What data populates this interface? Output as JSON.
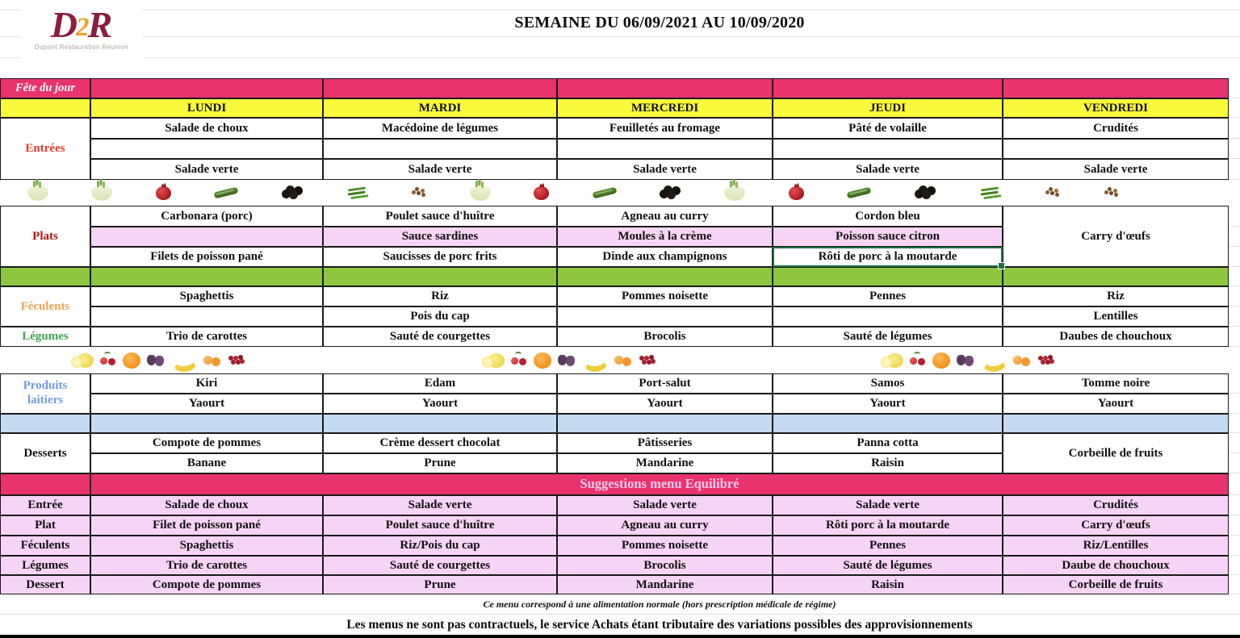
{
  "header": {
    "title": "SEMAINE DU 06/09/2021 AU 10/09/2020",
    "logo": {
      "d": "D",
      "two": "2",
      "r": "R",
      "subtitle": "Dupont Restauration Réunion"
    }
  },
  "days": [
    "LUNDI",
    "MARDI",
    "MERCREDI",
    "JEUDI",
    "VENDREDI"
  ],
  "labels": {
    "fete": "Fête du jour",
    "entrees": "Entrées",
    "plats": "Plats",
    "feculents": "Féculents",
    "legumes": "Légumes",
    "laitiers_1": "Produits",
    "laitiers_2": "laitiers",
    "desserts": "Desserts",
    "suggestions_title": "Suggestions menu Equilibré",
    "sugg_rows": [
      "Entrée",
      "Plat",
      "Féculents",
      "Légumes",
      "Dessert"
    ]
  },
  "menu": {
    "entrees_r1": [
      "Salade de choux",
      "Macédoine de légumes",
      "Feuilletés au fromage",
      "Pâté de volaille",
      "Crudités"
    ],
    "entrees_r2": [
      "",
      "",
      "",
      "",
      ""
    ],
    "entrees_r3": [
      "Salade verte",
      "Salade verte",
      "Salade verte",
      "Salade verte",
      "Salade verte"
    ],
    "plats_r1": [
      "Carbonara (porc)",
      "Poulet sauce d'huître",
      "Agneau au curry",
      "Cordon bleu"
    ],
    "plats_r2": [
      "",
      "Sauce sardines",
      "Moules à la crème",
      "Poisson sauce citron"
    ],
    "plats_r3": [
      "Filets de poisson pané",
      "Saucisses de porc frits",
      "Dinde aux champignons",
      "Rôti de porc à la moutarde"
    ],
    "plats_vendredi": "Carry d'œufs",
    "feculents_r1": [
      "Spaghettis",
      "Riz",
      "Pommes noisette",
      "Pennes",
      "Riz"
    ],
    "feculents_r2": [
      "",
      "Pois du cap",
      "",
      "",
      "Lentilles"
    ],
    "legumes": [
      "Trio de carottes",
      "Sauté de courgettes",
      "Brocolis",
      "Sauté de légumes",
      "Daubes de chouchoux"
    ],
    "laitiers_r1": [
      "Kiri",
      "Edam",
      "Port-salut",
      "Samos",
      "Tomme noire"
    ],
    "laitiers_r2": [
      "Yaourt",
      "Yaourt",
      "Yaourt",
      "Yaourt",
      "Yaourt"
    ],
    "desserts_r1": [
      "Compote de pommes",
      "Crème dessert chocolat",
      "Pâtisseries",
      "Panna cotta"
    ],
    "desserts_r2": [
      "Banane",
      "Prune",
      "Mandarine",
      "Raisin"
    ],
    "desserts_vendredi": "Corbeille de fruits"
  },
  "suggestions": {
    "entree": [
      "Salade de choux",
      "Salade verte",
      "Salade verte",
      "Salade verte",
      "Crudités"
    ],
    "plat": [
      "Filet de poisson pané",
      "Poulet sauce d'huître",
      "Agneau au curry",
      "Rôti porc à la moutarde",
      "Carry d'œufs"
    ],
    "feculents": [
      "Spaghettis",
      "Riz/Pois du cap",
      "Pommes noisette",
      "Pennes",
      "Riz/Lentilles"
    ],
    "legumes": [
      "Trio de carottes",
      "Sauté de courgettes",
      "Brocolis",
      "Sauté de légumes",
      "Daube de chouchoux"
    ],
    "dessert": [
      "Compote de pommes",
      "Prune",
      "Mandarine",
      "Raisin",
      "Corbeille de fruits"
    ]
  },
  "footer": {
    "note1": "Ce menu correspond à une alimentation normale (hors prescription médicale de régime)",
    "note2": "Les menus ne sont pas contractuels, le service Achats étant tributaire des variations possibles des approvisionnements"
  },
  "colors": {
    "crimson": "#e8336e",
    "yellow": "#fafa3c",
    "light_pink": "#f5d4f6",
    "green_band": "#8ec63f",
    "blue_band": "#c5d9f1",
    "selection_green": "#1e7145",
    "entrees_red": "#e8392b",
    "plats_dark_red": "#b2150a",
    "feculents_orange": "#f1a156",
    "legumes_green": "#3fa44c",
    "laitiers_blue": "#6f9ce3"
  },
  "decor": {
    "veg_strip": [
      "fennel",
      "fennel",
      "pomegranate",
      "zucchini",
      "olives",
      "beans",
      "seeds",
      "fennel",
      "pomegranate",
      "zucchini",
      "olives",
      "fennel",
      "pomegranate",
      "zucchini",
      "olives",
      "beans",
      "seeds",
      "seeds"
    ],
    "fruit_group": [
      "lemon",
      "cherries",
      "orange",
      "figs",
      "banana",
      "apricots",
      "berries"
    ]
  }
}
